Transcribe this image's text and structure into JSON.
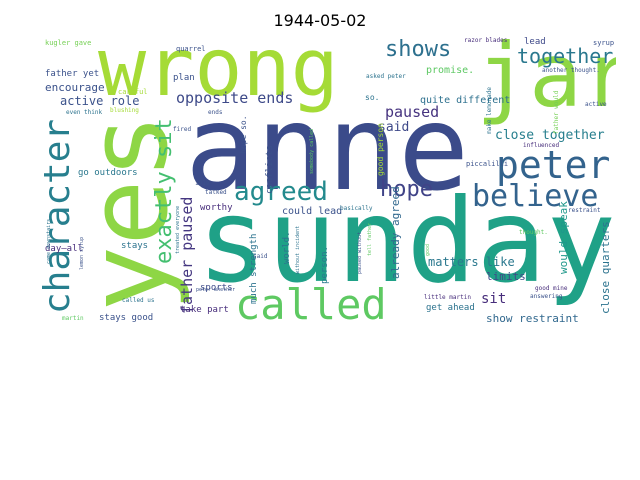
{
  "title": "1944-05-02",
  "words": [
    {
      "text": "anne",
      "color": "#3b4b8a"
    },
    {
      "text": "sunday",
      "color": "#1fa187"
    },
    {
      "text": "wrong",
      "color": "#a5db36"
    },
    {
      "text": "yes",
      "color": "#8ed645"
    },
    {
      "text": "jar",
      "color": "#8ed645"
    },
    {
      "text": "peter",
      "color": "#33638d"
    },
    {
      "text": "called",
      "color": "#5ec962"
    },
    {
      "text": "character",
      "color": "#277f8e"
    },
    {
      "text": "believe",
      "color": "#33638d"
    },
    {
      "text": "agreed",
      "color": "#238a8d"
    },
    {
      "text": "shows",
      "color": "#2d708e"
    },
    {
      "text": "together",
      "color": "#2a788e"
    },
    {
      "text": "hope",
      "color": "#404387"
    },
    {
      "text": "exactly sit",
      "color": "#44bf70"
    },
    {
      "text": "opposite ends",
      "color": "#3e4a89"
    },
    {
      "text": "father paused",
      "color": "#453781"
    },
    {
      "text": "paused",
      "color": "#46337f"
    },
    {
      "text": "close together",
      "color": "#277f8e"
    },
    {
      "text": "active role",
      "color": "#3b528b"
    },
    {
      "text": "encourage",
      "color": "#3b528b"
    },
    {
      "text": "said",
      "color": "#3e4989"
    },
    {
      "text": "matters like",
      "color": "#2a788e"
    },
    {
      "text": "sit",
      "color": "#472d7b"
    },
    {
      "text": "limits",
      "color": "#3e4a89"
    },
    {
      "text": "show restraint",
      "color": "#31688e"
    },
    {
      "text": "close quarters",
      "color": "#2c738e"
    },
    {
      "text": "would speak",
      "color": "#1f988b"
    },
    {
      "text": "already agreed",
      "color": "#31688e"
    },
    {
      "text": "could lead",
      "color": "#3b528b"
    },
    {
      "text": "quite different",
      "color": "#2d708e"
    },
    {
      "text": "promise.",
      "color": "#5dc863"
    },
    {
      "text": "lead",
      "color": "#3e4989"
    },
    {
      "text": "father yet",
      "color": "#3b528b"
    },
    {
      "text": "day—all",
      "color": "#472d7b"
    },
    {
      "text": "stays good",
      "color": "#3b528b"
    },
    {
      "text": "take part",
      "color": "#472d7b"
    },
    {
      "text": "sports",
      "color": "#3e4a89"
    },
    {
      "text": "stays",
      "color": "#2c738e"
    },
    {
      "text": "go outdoors",
      "color": "#2a788e"
    },
    {
      "text": "worthy",
      "color": "#472d7b"
    },
    {
      "text": "much strength",
      "color": "#2c738e"
    },
    {
      "text": "world.",
      "color": "#2c738e"
    },
    {
      "text": "person.",
      "color": "#2a788e"
    },
    {
      "text": "get ahead",
      "color": "#2c738e"
    },
    {
      "text": "conflicts",
      "color": "#3b528b"
    },
    {
      "text": "hope so.",
      "color": "#3b528b"
    },
    {
      "text": "good person",
      "color": "#a5db36"
    },
    {
      "text": "plan",
      "color": "#3b528b"
    },
    {
      "text": "so.",
      "color": "#2c738e"
    },
    {
      "text": "careful",
      "color": "#a5db36"
    },
    {
      "text": "kugler gave",
      "color": "#75d054"
    },
    {
      "text": "quarrel",
      "color": "#3b528b"
    },
    {
      "text": "razor blades",
      "color": "#472d7b"
    },
    {
      "text": "syrup",
      "color": "#3b528b"
    },
    {
      "text": "another thought.",
      "color": "#3b528b"
    },
    {
      "text": "asked peter",
      "color": "#2c738e"
    },
    {
      "text": "father would",
      "color": "#75d054"
    },
    {
      "text": "make lemonade",
      "color": "#2c738e"
    },
    {
      "text": "active",
      "color": "#3b528b"
    },
    {
      "text": "influenced",
      "color": "#472d7b"
    },
    {
      "text": "piccalilli",
      "color": "#3b528b"
    },
    {
      "text": "thought.",
      "color": "#5ec962"
    },
    {
      "text": "restraint",
      "color": "#3b528b"
    },
    {
      "text": "good mine",
      "color": "#472d7b"
    },
    {
      "text": "answering",
      "color": "#3b528b"
    },
    {
      "text": "little martin",
      "color": "#472d7b"
    },
    {
      "text": "tell father",
      "color": "#5ec962"
    },
    {
      "text": "paused without",
      "color": "#3b528b"
    },
    {
      "text": "good",
      "color": "#5ec962"
    },
    {
      "text": "without incident",
      "color": "#2c738e"
    },
    {
      "text": "somebody called",
      "color": "#5ec962"
    },
    {
      "text": "basically",
      "color": "#2c738e"
    },
    {
      "text": "fired",
      "color": "#3b528b"
    },
    {
      "text": "ends",
      "color": "#3b528b"
    },
    {
      "text": "even think",
      "color": "#2c738e"
    },
    {
      "text": "blushing",
      "color": "#a5db36"
    },
    {
      "text": "1919",
      "color": "#3b528b"
    },
    {
      "text": "talked",
      "color": "#3b528b"
    },
    {
      "text": "said",
      "color": "#3b528b"
    },
    {
      "text": "treated everyone",
      "color": "#2c738e"
    },
    {
      "text": "came downstairs",
      "color": "#2c738e"
    },
    {
      "text": "lemon syrup",
      "color": "#3b528b"
    },
    {
      "text": "called us",
      "color": "#2c738e"
    },
    {
      "text": "martin",
      "color": "#5ec962"
    },
    {
      "text": "peter whether",
      "color": "#3b528b"
    }
  ]
}
